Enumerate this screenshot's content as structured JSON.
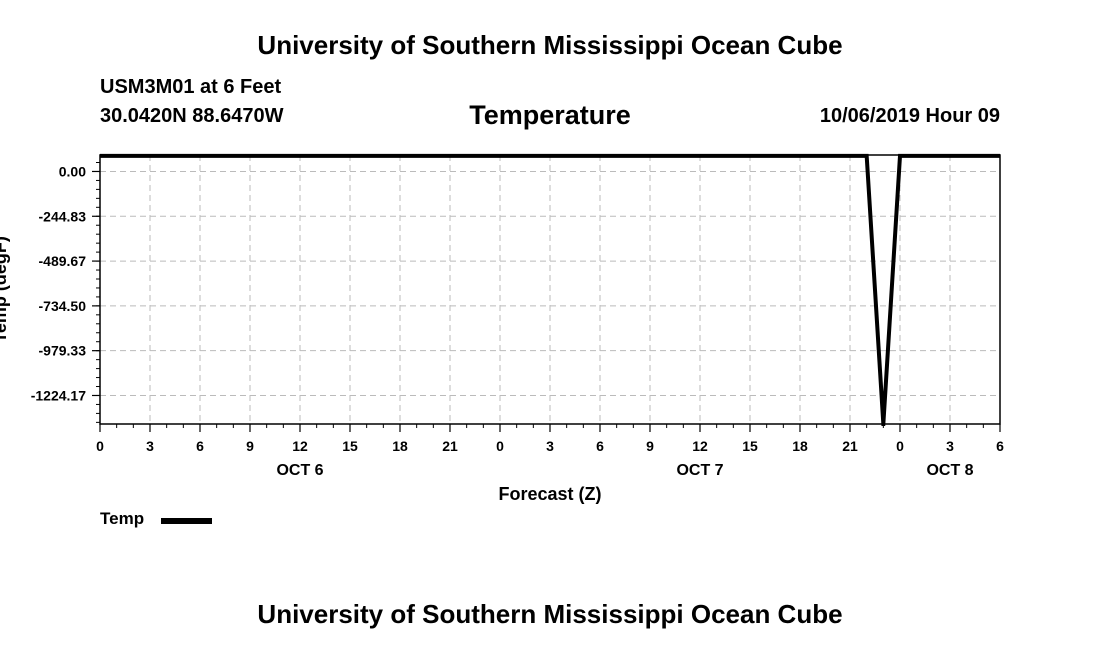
{
  "header": {
    "title": "University of Southern Mississippi Ocean Cube",
    "station": "USM3M01 at 6 Feet",
    "coordinates": "30.0420N 88.6470W",
    "variable": "Temperature",
    "timestamp": "10/06/2019 Hour 09"
  },
  "footer": {
    "title": "University of Southern Mississippi Ocean Cube"
  },
  "legend": {
    "label": "Temp",
    "position": "bottom-left"
  },
  "chart_data": {
    "type": "line",
    "title": "Temperature",
    "xlabel": "Forecast (Z)",
    "ylabel": "Temp (degF)",
    "grid": true,
    "line_color": "#000000",
    "grid_color": "#bbbbbb",
    "xlim": [
      0,
      54
    ],
    "ylim": [
      -1380,
      90
    ],
    "yticks": [
      0.0,
      -244.83,
      -489.67,
      -734.5,
      -979.33,
      -1224.17
    ],
    "ytick_labels": [
      "0.00",
      "-244.83",
      "-489.67",
      "-734.50",
      "-979.33",
      "-1224.17"
    ],
    "xticks": [
      0,
      3,
      6,
      9,
      12,
      15,
      18,
      21,
      24,
      27,
      30,
      33,
      36,
      39,
      42,
      45,
      48,
      51,
      54
    ],
    "xtick_labels": [
      "0",
      "3",
      "6",
      "9",
      "12",
      "15",
      "18",
      "21",
      "0",
      "3",
      "6",
      "9",
      "12",
      "15",
      "18",
      "21",
      "0",
      "3",
      "6"
    ],
    "day_labels": [
      {
        "x": 12,
        "label": "OCT 6"
      },
      {
        "x": 36,
        "label": "OCT 7"
      },
      {
        "x": 51,
        "label": "OCT 8"
      }
    ],
    "series": [
      {
        "name": "Temp",
        "x": [
          0,
          46,
          47,
          48,
          54
        ],
        "y": [
          85,
          85,
          -1380,
          85,
          85
        ]
      }
    ]
  }
}
